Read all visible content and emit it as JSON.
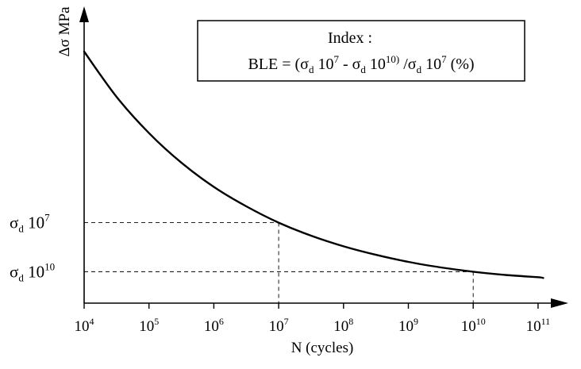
{
  "chart_data": {
    "type": "line",
    "title": "",
    "xlabel": "N (cycles)",
    "ylabel": "Δσ MPa",
    "x_scale": "log",
    "x_ticks": [
      {
        "base": "10",
        "exp": "4"
      },
      {
        "base": "10",
        "exp": "5"
      },
      {
        "base": "10",
        "exp": "6"
      },
      {
        "base": "10",
        "exp": "7"
      },
      {
        "base": "10",
        "exp": "8"
      },
      {
        "base": "10",
        "exp": "9"
      },
      {
        "base": "10",
        "exp": "10"
      },
      {
        "base": "10",
        "exp": "11"
      }
    ],
    "curve": {
      "x": [
        10000,
        31623,
        100000,
        316228,
        1000000,
        3162278,
        10000000,
        31622777,
        100000000,
        316227766,
        1000000000,
        3162277660,
        10000000000,
        31622776602,
        100000000000,
        120000000000
      ],
      "y": [
        1.0,
        0.82,
        0.676,
        0.558,
        0.462,
        0.385,
        0.32,
        0.268,
        0.226,
        0.192,
        0.164,
        0.142,
        0.125,
        0.112,
        0.103,
        0.1
      ]
    },
    "y_ticks": [
      {
        "sym": "σ",
        "sub": "d",
        "base": "10",
        "exp": "7"
      },
      {
        "sym": "σ",
        "sub": "d",
        "base": "10",
        "exp": "10"
      }
    ],
    "reference_lines": [
      {
        "x": 10000000,
        "y": 0.32
      },
      {
        "x": 10000000000,
        "y": 0.125
      }
    ],
    "grid": false,
    "legend": "none"
  },
  "index_box": {
    "title": "Index :",
    "formula": {
      "lhs": "BLE = (",
      "s1": "σ",
      "d1": "d",
      "b1": " 10",
      "e1": "7",
      "minus": " - ",
      "s2": "σ",
      "d2": "d",
      "b2": " 10",
      "e2": "10)",
      "slash": " /",
      "s3": "σ",
      "d3": "d",
      "b3": " 10",
      "e3": "7",
      "unit": "  (%)"
    }
  }
}
